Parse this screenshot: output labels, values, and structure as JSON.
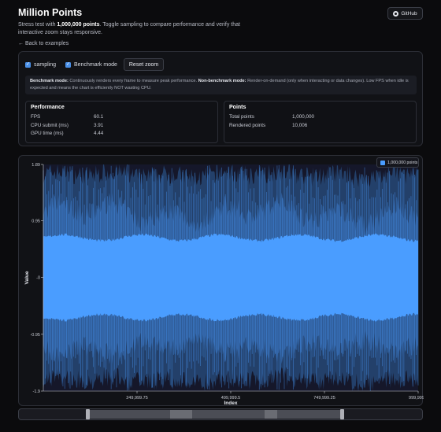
{
  "header": {
    "title": "Million Points",
    "github_label": "GitHub",
    "desc_prefix": "Stress test with ",
    "desc_bold": "1,000,000 points",
    "desc_suffix": ". Toggle sampling to compare performance and verify that interactive zoom stays responsive.",
    "back_link": "← Back to examples"
  },
  "controls": {
    "sampling_label": "sampling",
    "sampling_checked": true,
    "benchmark_label": "Benchmark mode",
    "benchmark_checked": true,
    "reset_label": "Reset zoom"
  },
  "note": {
    "bench_title": "Benchmark mode:",
    "bench_text": " Continuously renders every frame to measure peak performance. ",
    "nonbench_title": "Non-benchmark mode:",
    "nonbench_text": " Render-on-demand (only when interacting or data changes). Low FPS when idle is expected and means the chart is efficiently NOT wasting CPU."
  },
  "performance": {
    "title": "Performance",
    "rows": [
      {
        "k": "FPS",
        "v": "60.1"
      },
      {
        "k": "CPU submit (ms)",
        "v": "3.91"
      },
      {
        "k": "GPU time (ms)",
        "v": "4.44"
      }
    ]
  },
  "points": {
    "title": "Points",
    "rows": [
      {
        "k": "Total points",
        "v": "1,000,000"
      },
      {
        "k": "Rendered points",
        "v": "10,006"
      }
    ]
  },
  "chart_data": {
    "type": "area",
    "title": "",
    "xlabel": "Index",
    "ylabel": "Value",
    "x_ticks": [
      "249,999.75",
      "499,999.5",
      "749,999.25",
      "999,999"
    ],
    "y_ticks": [
      "1.89",
      "0.95",
      "-0",
      "-0.95",
      "-1.9"
    ],
    "ylim": [
      -1.9,
      1.89
    ],
    "xlim": [
      0,
      999999
    ],
    "series": [
      {
        "name": "1,000,000 points",
        "color": "#4a9dff"
      }
    ],
    "legend_position": "top-right",
    "colors": {
      "dense": "#4a9dff",
      "envelope": "#2f5c98",
      "envelope_dark": "#23406a",
      "background": "#15172a"
    }
  },
  "zoom": {
    "start": 0.17,
    "end": 0.8
  }
}
